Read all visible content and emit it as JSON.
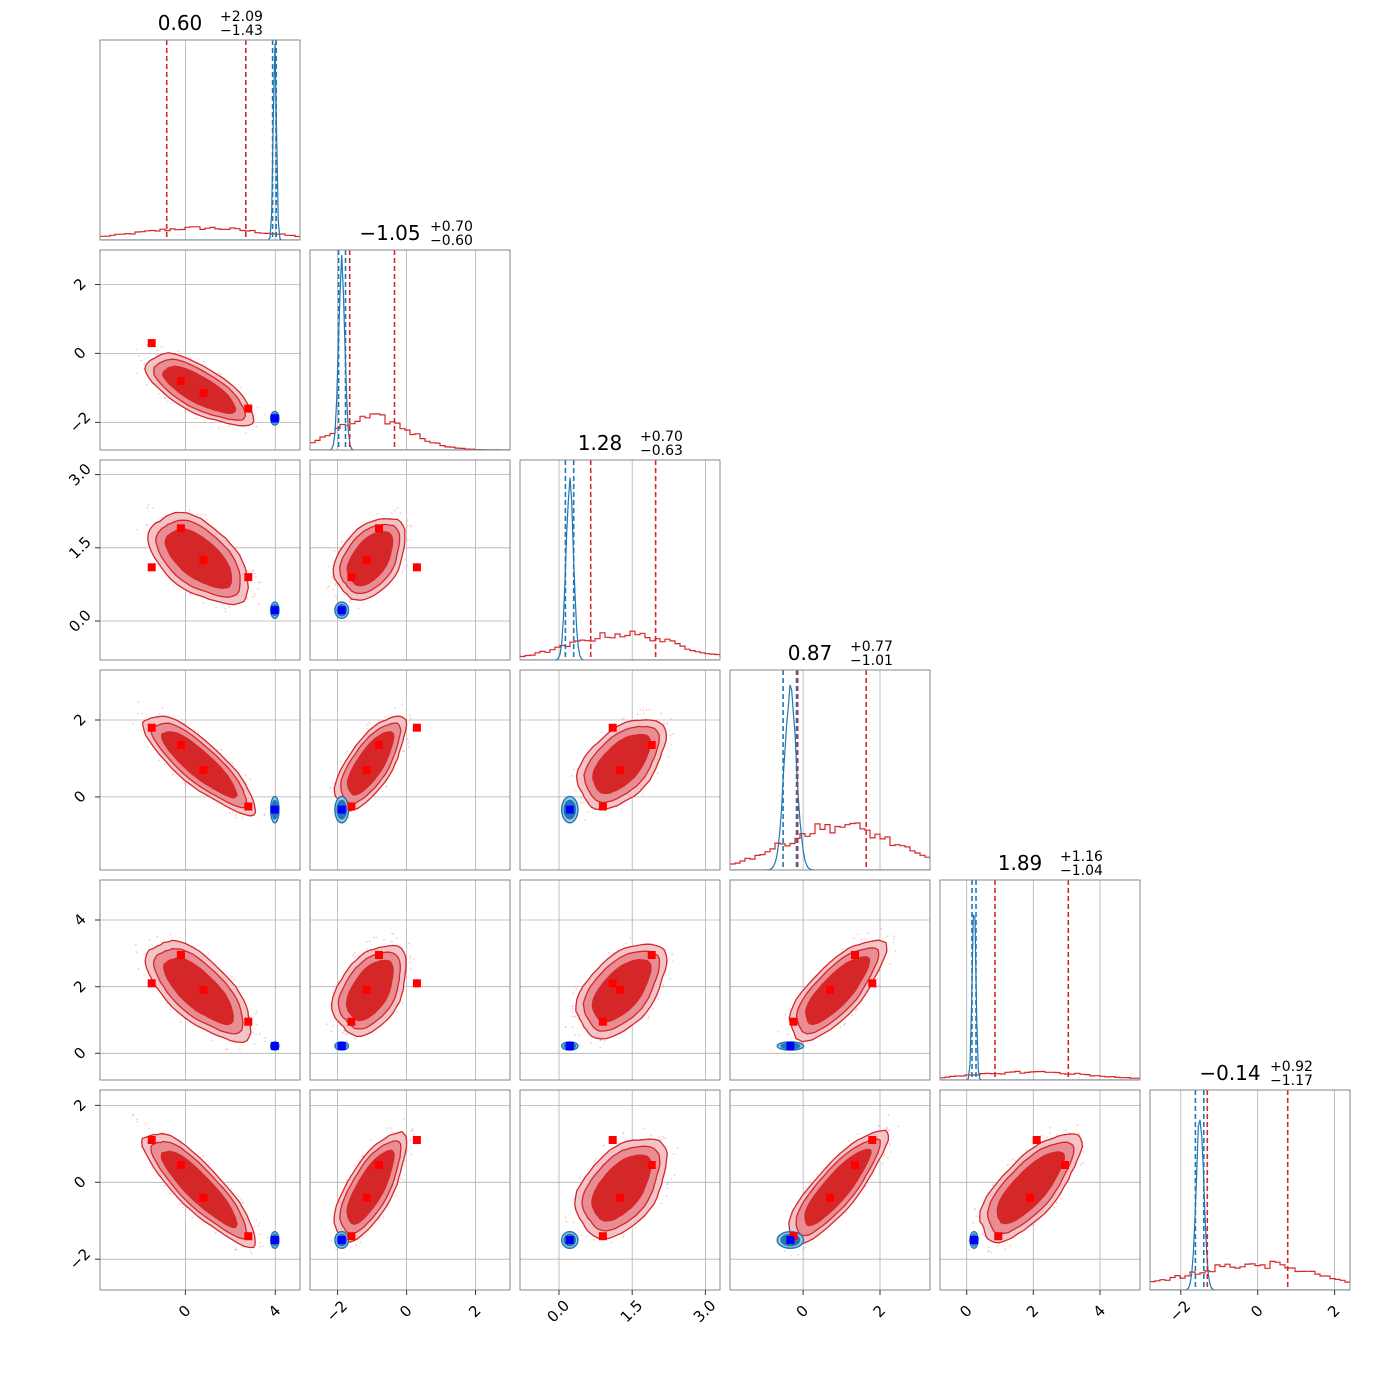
{
  "chart_data": {
    "type": "corner",
    "n_params": 6,
    "grid": true,
    "colors": {
      "posterior_wide": "#d62728",
      "posterior_narrow": "#1f77b4",
      "marker_wide": "#ff0000",
      "marker_narrow": "#0000ff",
      "fill_outer": "#f2c4c8",
      "fill_middle": "#e88d93",
      "fill_inner": "#d62728"
    },
    "titles": [
      {
        "median": "0.60",
        "plus": "+2.09",
        "minus": "−1.43"
      },
      {
        "median": "−1.05",
        "plus": "+0.70",
        "minus": "−0.60"
      },
      {
        "median": "1.28",
        "plus": "+0.70",
        "minus": "−0.63"
      },
      {
        "median": "0.87",
        "plus": "+0.77",
        "minus": "−1.01"
      },
      {
        "median": "1.89",
        "plus": "+1.16",
        "minus": "−1.04"
      },
      {
        "median": "−0.14",
        "plus": "+0.92",
        "minus": "−1.17"
      }
    ],
    "axes": [
      {
        "range": [
          -3.8,
          5.1
        ],
        "ticks": [
          0,
          4
        ],
        "tick_labels": [
          "0",
          "4"
        ]
      },
      {
        "range": [
          -2.8,
          3.0
        ],
        "ticks": [
          -2,
          0,
          2
        ],
        "tick_labels": [
          "−2",
          "0",
          "2"
        ]
      },
      {
        "range": [
          -0.8,
          3.3
        ],
        "ticks": [
          0.0,
          1.5,
          3.0
        ],
        "tick_labels": [
          "0.0",
          "1.5",
          "3.0"
        ]
      },
      {
        "range": [
          -1.9,
          3.3
        ],
        "ticks": [
          0,
          2
        ],
        "tick_labels": [
          "0",
          "2"
        ]
      },
      {
        "range": [
          -0.8,
          5.2
        ],
        "ticks": [
          0,
          2,
          4
        ],
        "tick_labels": [
          "0",
          "2",
          "4"
        ]
      },
      {
        "range": [
          -2.8,
          2.4
        ],
        "ticks": [
          -2,
          0,
          2
        ],
        "tick_labels": [
          "−2",
          "0",
          "2"
        ]
      }
    ],
    "wide_posterior": {
      "median": [
        0.6,
        -1.05,
        1.28,
        0.87,
        1.89,
        -0.14
      ],
      "quantile_lines": [
        [
          -0.83,
          2.69
        ],
        [
          -1.65,
          -0.35
        ],
        [
          0.65,
          1.98
        ],
        [
          -0.14,
          1.64
        ],
        [
          0.85,
          3.05
        ],
        [
          -1.31,
          0.78
        ]
      ],
      "hist_peak_fraction": [
        0.06,
        0.16,
        0.13,
        0.22,
        0.04,
        0.13
      ],
      "correlations": [
        [
          1,
          -0.85,
          -0.6,
          -0.9,
          -0.7,
          -0.9
        ],
        [
          -0.85,
          1,
          0.6,
          0.85,
          0.6,
          0.85
        ],
        [
          -0.6,
          0.6,
          1,
          0.6,
          0.6,
          0.55
        ],
        [
          -0.9,
          0.85,
          0.6,
          1,
          0.8,
          0.9
        ],
        [
          -0.7,
          0.6,
          0.6,
          0.8,
          1,
          0.75
        ],
        [
          -0.9,
          0.85,
          0.55,
          0.9,
          0.75,
          1
        ]
      ],
      "sample_markers": [
        [
          -1.5,
          0.3,
          1.1,
          1.8,
          2.1,
          1.1
        ],
        [
          -0.2,
          -0.8,
          1.9,
          1.35,
          2.95,
          0.45
        ],
        [
          0.8,
          -1.15,
          1.25,
          0.7,
          1.9,
          -0.4
        ],
        [
          2.8,
          -1.6,
          0.9,
          -0.25,
          0.95,
          -1.4
        ]
      ]
    },
    "narrow_posterior": {
      "median": [
        3.98,
        -1.88,
        0.22,
        -0.33,
        0.22,
        -1.5
      ],
      "quantile_lines": [
        [
          3.88,
          4.04
        ],
        [
          -1.97,
          -1.77
        ],
        [
          0.13,
          0.3
        ],
        [
          -0.52,
          -0.17
        ],
        [
          0.16,
          0.28
        ],
        [
          -1.62,
          -1.4
        ]
      ],
      "hist_peak_fraction": [
        0.99,
        0.98,
        0.92,
        0.93,
        0.96,
        0.91
      ]
    }
  }
}
